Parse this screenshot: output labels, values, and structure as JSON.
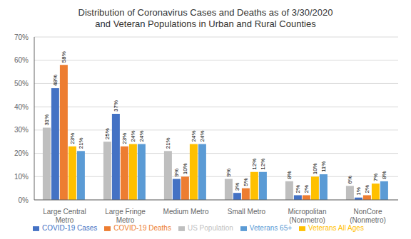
{
  "chart_data": {
    "type": "bar",
    "title": "Distribution of Coronavirus Cases and Deaths as of 3/30/2020\nand Veteran Populations in Urban and Rural Counties",
    "categories": [
      "Large Central\nMetro",
      "Large Fringe\nMetro",
      "Medium Metro",
      "Small Metro",
      "Micropolitan\n(Nonmetro)",
      "NonCore\n(Nonmetro)"
    ],
    "series": [
      {
        "name": "US Population",
        "color": "#bfbfbf",
        "values": [
          31,
          25,
          21,
          9,
          8,
          6
        ],
        "value_labels": [
          "31%",
          "25%",
          "21%",
          "9%",
          "8%",
          "6%"
        ]
      },
      {
        "name": "COVID-19 Cases",
        "color": "#4472c4",
        "values": [
          48,
          37,
          9,
          3,
          2,
          1
        ],
        "value_labels": [
          "48%",
          "37%",
          "9%",
          "3%",
          "2%",
          "1%"
        ]
      },
      {
        "name": "COVID-19 Deaths",
        "color": "#ed7d31",
        "values": [
          58,
          23,
          10,
          5,
          2,
          2
        ],
        "value_labels": [
          "58%",
          "23%",
          "10%",
          "5%",
          "2%",
          "2%"
        ]
      },
      {
        "name": "Veterans All Ages",
        "color": "#ffc000",
        "values": [
          23,
          24,
          24,
          12,
          10,
          7
        ],
        "value_labels": [
          "23%",
          "24%",
          "24%",
          "12%",
          "10%",
          "7%"
        ]
      },
      {
        "name": "Veterans 65+",
        "color": "#5b9bd5",
        "values": [
          21,
          24,
          24,
          12,
          11,
          8
        ],
        "value_labels": [
          "21%",
          "24%",
          "24%",
          "12%",
          "11%",
          "8%"
        ]
      }
    ],
    "ylim": [
      0,
      70
    ],
    "yticks": [
      {
        "value": 0,
        "label": "0%"
      },
      {
        "value": 10,
        "label": "10%"
      },
      {
        "value": 20,
        "label": "20%"
      },
      {
        "value": 30,
        "label": "30%"
      },
      {
        "value": 40,
        "label": "40%"
      },
      {
        "value": 50,
        "label": "50%"
      },
      {
        "value": 60,
        "label": "60%"
      },
      {
        "value": 70,
        "label": "70%"
      }
    ],
    "grid": true,
    "legend": "bottom",
    "data_labels": true
  }
}
